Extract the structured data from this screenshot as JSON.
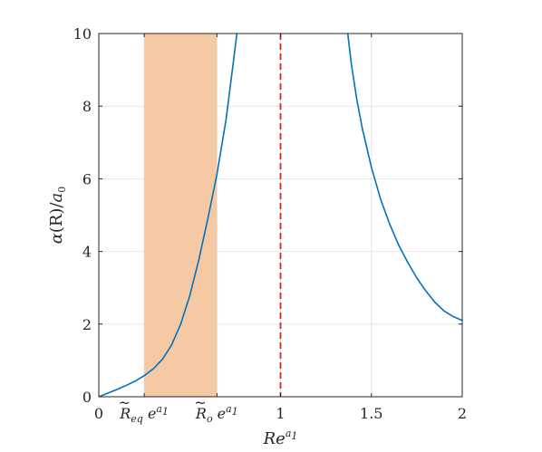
{
  "chart_data": {
    "type": "line",
    "xlabel": {
      "base": "Re",
      "sup": "a",
      "supsub": "1"
    },
    "ylabel": {
      "alpha": "α",
      "arg": "(R)",
      "slash": "/",
      "den": "a",
      "densub": "0"
    },
    "xlim": [
      0,
      2
    ],
    "ylim": [
      0,
      10
    ],
    "grid": true,
    "xticks": [
      {
        "value": 0,
        "label": "0"
      },
      {
        "value": 0.25,
        "label": "R̃eq e^a1",
        "tex": {
          "tilde": "~",
          "base": "R",
          "sub": "eq",
          "e": "e",
          "sup": "a",
          "supsub": "1"
        }
      },
      {
        "value": 0.65,
        "label": "R̃o e^a1",
        "tex": {
          "tilde": "~",
          "base": "R",
          "sub": "o",
          "e": "e",
          "sup": "a",
          "supsub": "1"
        }
      },
      {
        "value": 1,
        "label": "1"
      },
      {
        "value": 1.5,
        "label": "1.5"
      },
      {
        "value": 2,
        "label": "2"
      }
    ],
    "yticks": [
      {
        "value": 0,
        "label": "0"
      },
      {
        "value": 2,
        "label": "2"
      },
      {
        "value": 4,
        "label": "4"
      },
      {
        "value": 6,
        "label": "6"
      },
      {
        "value": 8,
        "label": "8"
      },
      {
        "value": 10,
        "label": "10"
      }
    ],
    "shaded_region": {
      "x": [
        0.25,
        0.65
      ],
      "color": "#f5c9a4"
    },
    "vline": {
      "x": 1,
      "color": "#d62728",
      "style": "dashed"
    },
    "series": [
      {
        "color": "#0072bd",
        "points": [
          [
            0,
            0
          ],
          [
            0.05,
            0.1
          ],
          [
            0.1,
            0.2
          ],
          [
            0.15,
            0.31
          ],
          [
            0.2,
            0.43
          ],
          [
            0.25,
            0.58
          ],
          [
            0.3,
            0.77
          ],
          [
            0.35,
            1.03
          ],
          [
            0.4,
            1.42
          ],
          [
            0.45,
            1.99
          ],
          [
            0.5,
            2.77
          ],
          [
            0.55,
            3.76
          ],
          [
            0.6,
            4.9
          ],
          [
            0.65,
            6.12
          ],
          [
            0.7,
            7.62
          ],
          [
            0.73,
            8.8
          ],
          [
            0.76,
            10
          ]
        ]
      },
      {
        "color": "#0072bd",
        "points": [
          [
            1.37,
            10
          ],
          [
            1.39,
            9.15
          ],
          [
            1.42,
            8.18
          ],
          [
            1.45,
            7.39
          ],
          [
            1.5,
            6.32
          ],
          [
            1.55,
            5.45
          ],
          [
            1.6,
            4.76
          ],
          [
            1.65,
            4.18
          ],
          [
            1.7,
            3.7
          ],
          [
            1.75,
            3.27
          ],
          [
            1.8,
            2.91
          ],
          [
            1.85,
            2.6
          ],
          [
            1.9,
            2.36
          ],
          [
            1.95,
            2.21
          ],
          [
            2,
            2.1
          ]
        ]
      }
    ]
  }
}
